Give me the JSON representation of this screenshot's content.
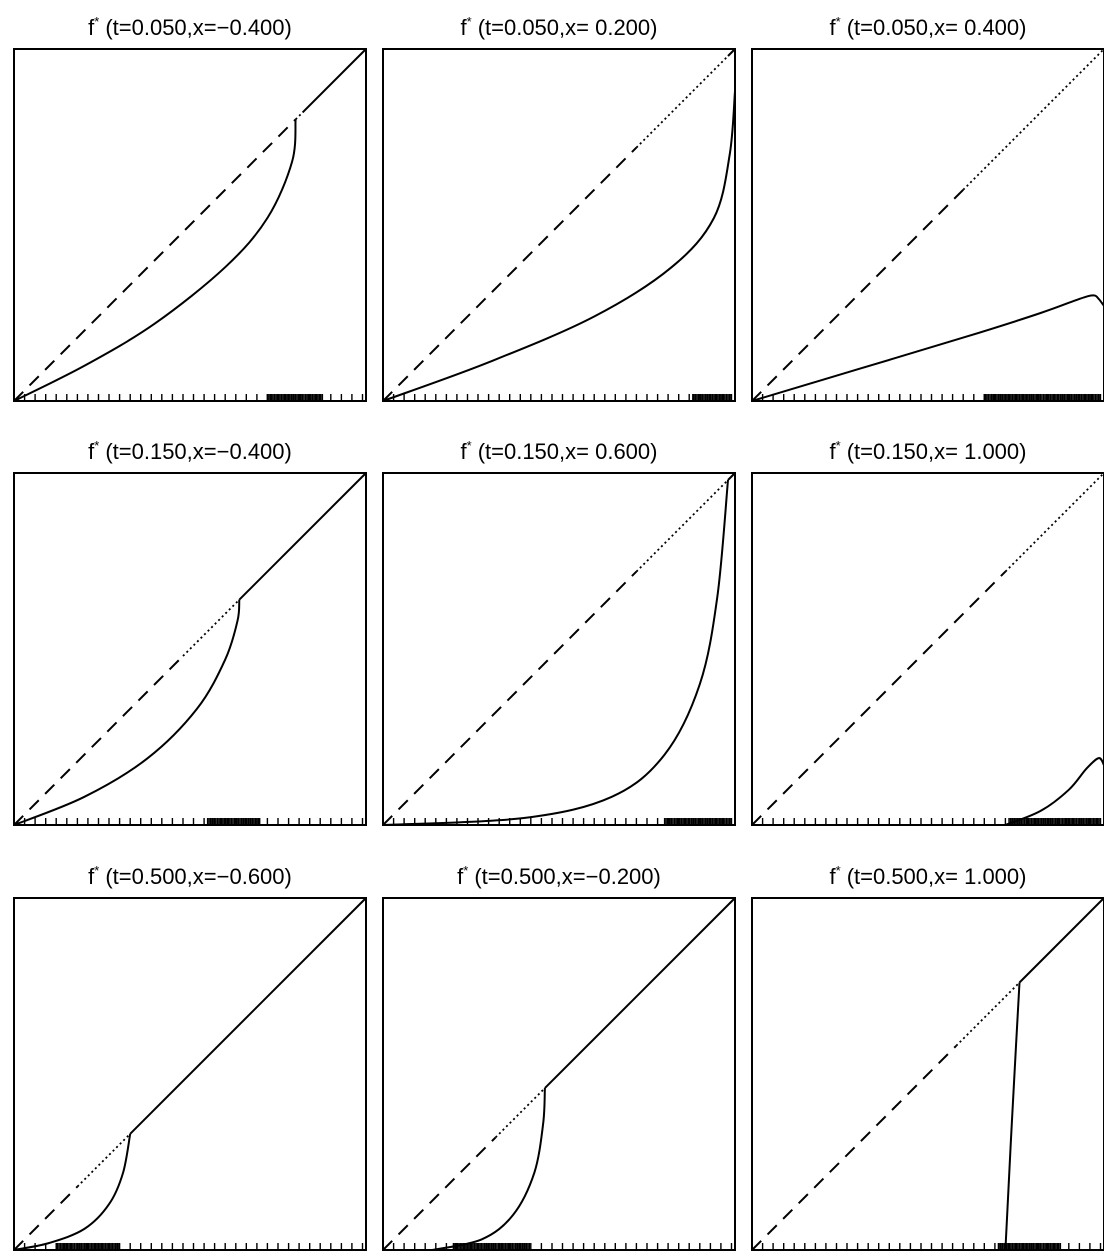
{
  "figure": {
    "panels": [
      {
        "title": "(t=0.050,x=−0.400)"
      },
      {
        "title": "(t=0.050,x=  0.200)"
      },
      {
        "title": "(t=0.050,x=  0.400)"
      },
      {
        "title": "(t=0.150,x=−0.400)"
      },
      {
        "title": "(t=0.150,x=  0.600)"
      },
      {
        "title": "(t=0.150,x=  1.000)"
      },
      {
        "title": "(t=0.500,x=−0.600)"
      },
      {
        "title": "(t=0.500,x=−0.200)"
      },
      {
        "title": "(t=0.500,x=  1.000)"
      }
    ],
    "title_prefix": "f",
    "title_superscript": "*",
    "colors": {
      "line": "#000000",
      "background": "#ffffff"
    }
  },
  "chart_data": [
    {
      "type": "line",
      "title": "f* (t=0.050,x=−0.400)",
      "xlim": [
        0,
        1
      ],
      "ylim": [
        0,
        1
      ],
      "series": [
        {
          "style": "dashed",
          "x": [
            0,
            0.8
          ],
          "y": [
            0,
            0.8
          ]
        },
        {
          "style": "dotted",
          "x": [
            0.8,
            0.82
          ],
          "y": [
            0.8,
            0.82
          ]
        },
        {
          "style": "solid",
          "x": [
            0.82,
            1
          ],
          "y": [
            0.82,
            1
          ]
        },
        {
          "style": "solid",
          "x": [
            0,
            0.2,
            0.4,
            0.6,
            0.72,
            0.79,
            0.8
          ],
          "y": [
            0,
            0.1,
            0.22,
            0.38,
            0.52,
            0.68,
            0.8
          ]
        }
      ],
      "rug": {
        "sparse_step": 0.03,
        "dense_range": [
          0.72,
          0.88
        ]
      }
    },
    {
      "type": "line",
      "title": "f* (t=0.050,x=  0.200)",
      "xlim": [
        0,
        1
      ],
      "ylim": [
        0,
        1
      ],
      "series": [
        {
          "style": "dashed",
          "x": [
            0,
            0.72
          ],
          "y": [
            0,
            0.72
          ]
        },
        {
          "style": "dotted",
          "x": [
            0.72,
            0.98
          ],
          "y": [
            0.72,
            0.98
          ]
        },
        {
          "style": "solid",
          "x": [
            0.98,
            1
          ],
          "y": [
            0.98,
            1
          ]
        },
        {
          "style": "solid",
          "x": [
            0,
            0.3,
            0.6,
            0.82,
            0.94,
            0.985,
            1
          ],
          "y": [
            0,
            0.11,
            0.24,
            0.38,
            0.52,
            0.7,
            0.88
          ]
        }
      ],
      "rug": {
        "sparse_step": 0.03,
        "dense_range": [
          0.88,
          0.99
        ]
      }
    },
    {
      "type": "line",
      "title": "f* (t=0.050,x=  0.400)",
      "xlim": [
        0,
        1
      ],
      "ylim": [
        0,
        1
      ],
      "series": [
        {
          "style": "dashed",
          "x": [
            0,
            0.6
          ],
          "y": [
            0,
            0.6
          ]
        },
        {
          "style": "dotted",
          "x": [
            0.6,
            1
          ],
          "y": [
            0.6,
            1
          ]
        },
        {
          "style": "solid",
          "x": [
            0,
            0.3,
            0.6,
            0.82,
            0.93,
            0.97,
            0.985,
            1
          ],
          "y": [
            0,
            0.09,
            0.18,
            0.25,
            0.29,
            0.3,
            0.29,
            0.27
          ]
        }
      ],
      "rug": {
        "sparse_step": 0.03,
        "dense_range": [
          0.66,
          0.99
        ]
      }
    },
    {
      "type": "line",
      "title": "f* (t=0.150,x=−0.400)",
      "xlim": [
        0,
        1
      ],
      "ylim": [
        0,
        1
      ],
      "series": [
        {
          "style": "dashed",
          "x": [
            0,
            0.48
          ],
          "y": [
            0,
            0.48
          ]
        },
        {
          "style": "dotted",
          "x": [
            0.48,
            0.64
          ],
          "y": [
            0.48,
            0.64
          ]
        },
        {
          "style": "solid",
          "x": [
            0.64,
            1
          ],
          "y": [
            0.64,
            1
          ]
        },
        {
          "style": "solid",
          "x": [
            0,
            0.2,
            0.38,
            0.52,
            0.6,
            0.635,
            0.64
          ],
          "y": [
            0,
            0.08,
            0.19,
            0.33,
            0.47,
            0.58,
            0.64
          ]
        }
      ],
      "rug": {
        "sparse_step": 0.03,
        "dense_range": [
          0.55,
          0.7
        ]
      }
    },
    {
      "type": "line",
      "title": "f* (t=0.150,x=  0.600)",
      "xlim": [
        0,
        1
      ],
      "ylim": [
        0,
        1
      ],
      "series": [
        {
          "style": "dashed",
          "x": [
            0,
            0.72
          ],
          "y": [
            0,
            0.72
          ]
        },
        {
          "style": "dotted",
          "x": [
            0.72,
            0.98
          ],
          "y": [
            0.72,
            0.98
          ]
        },
        {
          "style": "solid",
          "x": [
            0.98,
            1
          ],
          "y": [
            0.98,
            1
          ]
        },
        {
          "style": "solid",
          "x": [
            0,
            0.4,
            0.65,
            0.8,
            0.9,
            0.95,
            0.98
          ],
          "y": [
            0,
            0.02,
            0.08,
            0.2,
            0.4,
            0.65,
            0.98
          ]
        }
      ],
      "rug": {
        "sparse_step": 0.03,
        "dense_range": [
          0.8,
          0.99
        ]
      }
    },
    {
      "type": "line",
      "title": "f* (t=0.150,x=  1.000)",
      "xlim": [
        0,
        1
      ],
      "ylim": [
        0,
        1
      ],
      "series": [
        {
          "style": "dashed",
          "x": [
            0,
            0.72
          ],
          "y": [
            0,
            0.72
          ]
        },
        {
          "style": "dotted",
          "x": [
            0.72,
            1
          ],
          "y": [
            0.72,
            1
          ]
        },
        {
          "style": "solid",
          "x": [
            0.72,
            0.82,
            0.9,
            0.95,
            0.985,
            1
          ],
          "y": [
            0,
            0.04,
            0.1,
            0.16,
            0.19,
            0.17
          ]
        }
      ],
      "rug": {
        "sparse_step": 0.03,
        "dense_range": [
          0.73,
          0.99
        ]
      }
    },
    {
      "type": "line",
      "title": "f* (t=0.500,x=−0.600)",
      "xlim": [
        0,
        1
      ],
      "ylim": [
        0,
        1
      ],
      "series": [
        {
          "style": "dashed",
          "x": [
            0,
            0.18
          ],
          "y": [
            0,
            0.18
          ]
        },
        {
          "style": "dotted",
          "x": [
            0.18,
            0.33
          ],
          "y": [
            0.18,
            0.33
          ]
        },
        {
          "style": "solid",
          "x": [
            0.33,
            1
          ],
          "y": [
            0.33,
            1
          ]
        },
        {
          "style": "solid",
          "x": [
            0,
            0.1,
            0.2,
            0.27,
            0.31,
            0.33
          ],
          "y": [
            0,
            0.02,
            0.06,
            0.13,
            0.22,
            0.33
          ]
        }
      ],
      "rug": {
        "sparse_step": 0.03,
        "dense_range": [
          0.12,
          0.3
        ]
      }
    },
    {
      "type": "line",
      "title": "f* (t=0.500,x=−0.200)",
      "xlim": [
        0,
        1
      ],
      "ylim": [
        0,
        1
      ],
      "series": [
        {
          "style": "dashed",
          "x": [
            0,
            0.32
          ],
          "y": [
            0,
            0.32
          ]
        },
        {
          "style": "dotted",
          "x": [
            0.32,
            0.46
          ],
          "y": [
            0.32,
            0.46
          ]
        },
        {
          "style": "solid",
          "x": [
            0.46,
            1
          ],
          "y": [
            0.46,
            1
          ]
        },
        {
          "style": "solid",
          "x": [
            0.14,
            0.28,
            0.37,
            0.43,
            0.455,
            0.46
          ],
          "y": [
            0,
            0.03,
            0.1,
            0.22,
            0.36,
            0.46
          ]
        }
      ],
      "rug": {
        "sparse_step": 0.03,
        "dense_range": [
          0.2,
          0.42
        ]
      }
    },
    {
      "type": "line",
      "title": "f* (t=0.500,x=  1.000)",
      "xlim": [
        0,
        1
      ],
      "ylim": [
        0,
        1
      ],
      "series": [
        {
          "style": "dashed",
          "x": [
            0,
            0.58
          ],
          "y": [
            0,
            0.58
          ]
        },
        {
          "style": "dotted",
          "x": [
            0.58,
            0.76
          ],
          "y": [
            0.58,
            0.76
          ]
        },
        {
          "style": "solid",
          "x": [
            0.76,
            1
          ],
          "y": [
            0.76,
            1
          ]
        },
        {
          "style": "solid",
          "x": [
            0.72,
            0.735,
            0.75,
            0.76
          ],
          "y": [
            0,
            0.3,
            0.58,
            0.76
          ]
        }
      ],
      "rug": {
        "sparse_step": 0.03,
        "dense_range": [
          0.7,
          0.88
        ]
      }
    }
  ]
}
